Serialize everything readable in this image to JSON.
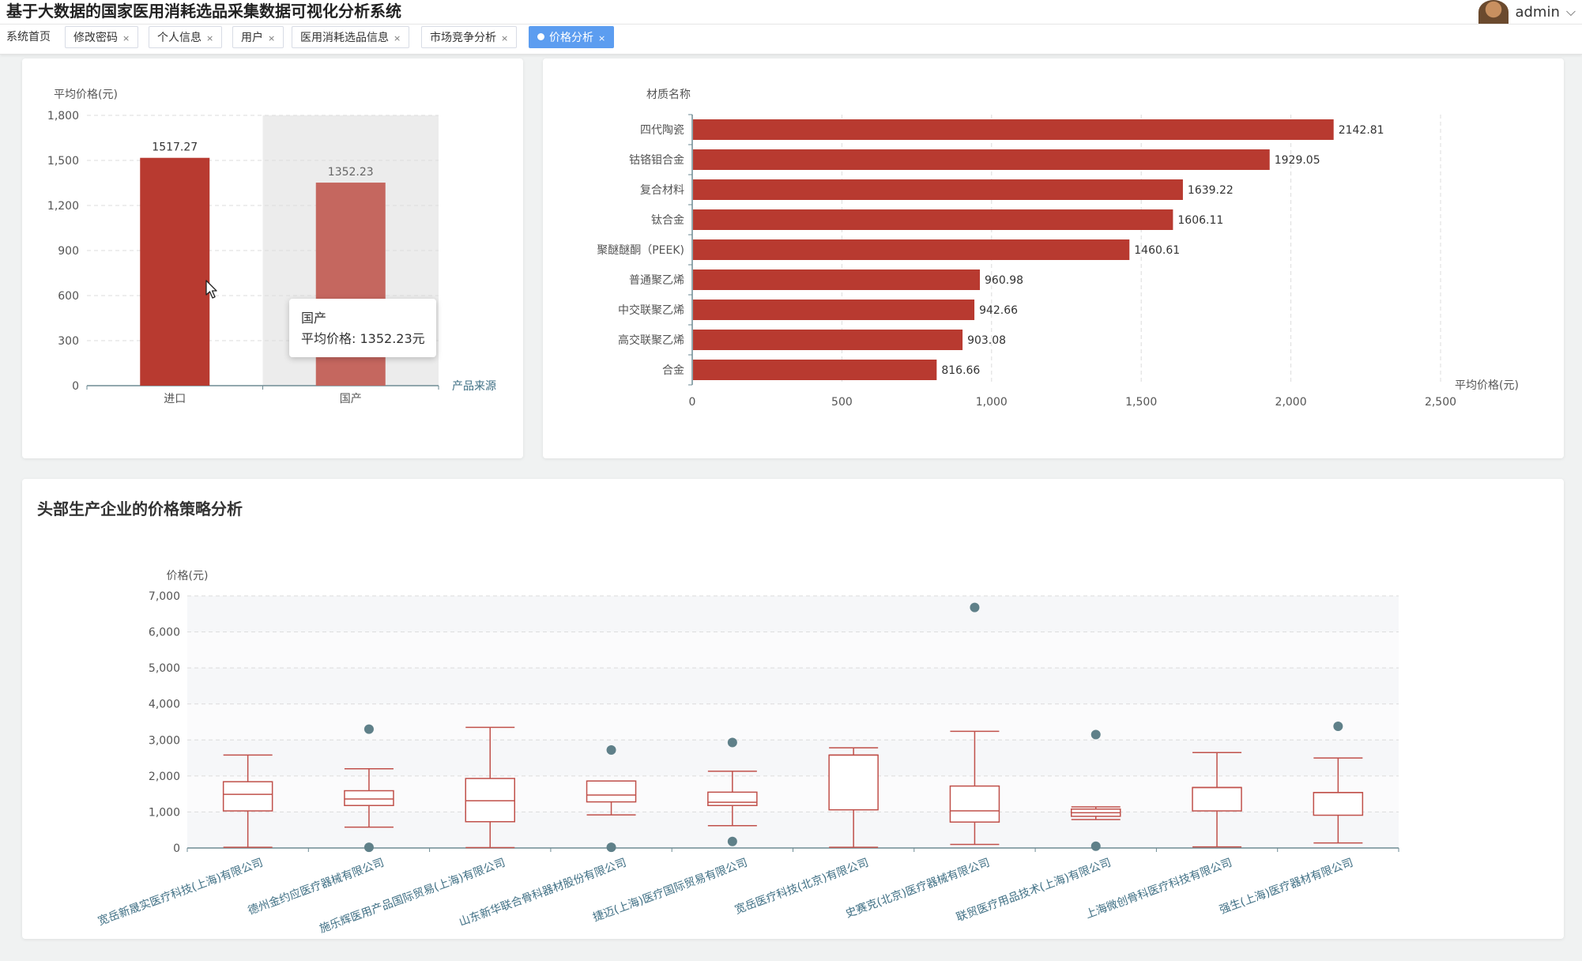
{
  "app": {
    "title": "基于大数据的国家医用消耗选品采集数据可视化分析系统"
  },
  "user": {
    "name": "admin",
    "chevron_icon": "chevron-down-icon"
  },
  "tabs": [
    {
      "label": "系统首页",
      "closable": false
    },
    {
      "label": "修改密码",
      "closable": true
    },
    {
      "label": "个人信息",
      "closable": true
    },
    {
      "label": "用户",
      "closable": true
    },
    {
      "label": "医用消耗选品信息",
      "closable": true
    },
    {
      "label": "市场竞争分析",
      "closable": true
    },
    {
      "label": "价格分析",
      "closable": true,
      "active": true
    }
  ],
  "tab_close_glyph": "×",
  "colors": {
    "bar": "#b83a30",
    "bar_highlight": "#c5675f",
    "box": "#c0504a",
    "outlier": "#5f8089",
    "active_tab": "#5c9df0",
    "axis": "#6e8b94"
  },
  "tooltip": {
    "title": "国产",
    "line": "平均价格: 1352.23元"
  },
  "boxplot_section": {
    "title": "头部生产企业的价格策略分析"
  },
  "chart_data": [
    {
      "id": "origin",
      "type": "bar",
      "categories": [
        "进口",
        "国产"
      ],
      "values": [
        1517.27,
        1352.23
      ],
      "value_labels": [
        "1517.27",
        "1352.23"
      ],
      "xlabel": "产品来源",
      "ylabel": "平均价格(元)",
      "ylim": [
        0,
        1800
      ],
      "yticks": [
        0,
        300,
        600,
        900,
        1200,
        1500,
        1800
      ],
      "ytick_labels": [
        "0",
        "300",
        "600",
        "900",
        "1,200",
        "1,500",
        "1,800"
      ],
      "highlighted_category": "国产",
      "grid": true
    },
    {
      "id": "material",
      "type": "bar",
      "orientation": "horizontal",
      "categories": [
        "四代陶瓷",
        "钴铬钼合金",
        "复合材料",
        "钛合金",
        "聚醚醚酮（PEEK)",
        "普通聚乙烯",
        "中交联聚乙烯",
        "高交联聚乙烯",
        "合金"
      ],
      "values": [
        2142.81,
        1929.05,
        1639.22,
        1606.11,
        1460.61,
        960.98,
        942.66,
        903.08,
        816.66
      ],
      "value_labels": [
        "2142.81",
        "1929.05",
        "1639.22",
        "1606.11",
        "1460.61",
        "960.98",
        "942.66",
        "903.08",
        "816.66"
      ],
      "xlabel": "平均价格(元)",
      "ylabel": "材质名称",
      "xlim": [
        0,
        2500
      ],
      "xticks": [
        0,
        500,
        1000,
        1500,
        2000,
        2500
      ],
      "xtick_labels": [
        "0",
        "500",
        "1,000",
        "1,500",
        "2,000",
        "2,500"
      ],
      "grid": true
    },
    {
      "id": "boxplot",
      "type": "boxplot",
      "ylabel": "价格(元)",
      "ylim": [
        0,
        7000
      ],
      "yticks": [
        0,
        1000,
        2000,
        3000,
        4000,
        5000,
        6000,
        7000
      ],
      "ytick_labels": [
        "0",
        "1,000",
        "2,000",
        "3,000",
        "4,000",
        "5,000",
        "6,000",
        "7,000"
      ],
      "categories": [
        "宽岳新晟实医疗科技(上海)有限公司",
        "德州金约应医疗器械有限公司",
        "施乐辉医用产品国际贸易(上海)有限公司",
        "山东新华联合骨科器材股份有限公司",
        "捷迈(上海)医疗国际贸易有限公司",
        "宽岳医疗科技(北京)有限公司",
        "史赛克(北京)医疗器械有限公司",
        "联贸医疗用品技术(上海)有限公司",
        "上海微创骨科医疗科技有限公司",
        "强生(上海)医疗器材有限公司"
      ],
      "boxes": [
        [
          20,
          1030,
          1490,
          1840,
          2580
        ],
        [
          580,
          1180,
          1360,
          1590,
          2200
        ],
        [
          10,
          730,
          1310,
          1930,
          3350
        ],
        [
          920,
          1280,
          1470,
          1860,
          1860
        ],
        [
          620,
          1180,
          1270,
          1550,
          2130
        ],
        [
          20,
          1060,
          2580,
          2580,
          2780
        ],
        [
          100,
          720,
          1030,
          1720,
          3240
        ],
        [
          790,
          880,
          980,
          1080,
          1140
        ],
        [
          30,
          1030,
          1680,
          1680,
          2650
        ],
        [
          140,
          910,
          1540,
          1540,
          2500
        ]
      ],
      "outliers": [
        [
          1,
          3300
        ],
        [
          1,
          20
        ],
        [
          3,
          2720
        ],
        [
          3,
          20
        ],
        [
          4,
          2930
        ],
        [
          4,
          180
        ],
        [
          6,
          6680
        ],
        [
          7,
          3150
        ],
        [
          7,
          50
        ],
        [
          9,
          3380
        ]
      ],
      "grid": true
    }
  ]
}
